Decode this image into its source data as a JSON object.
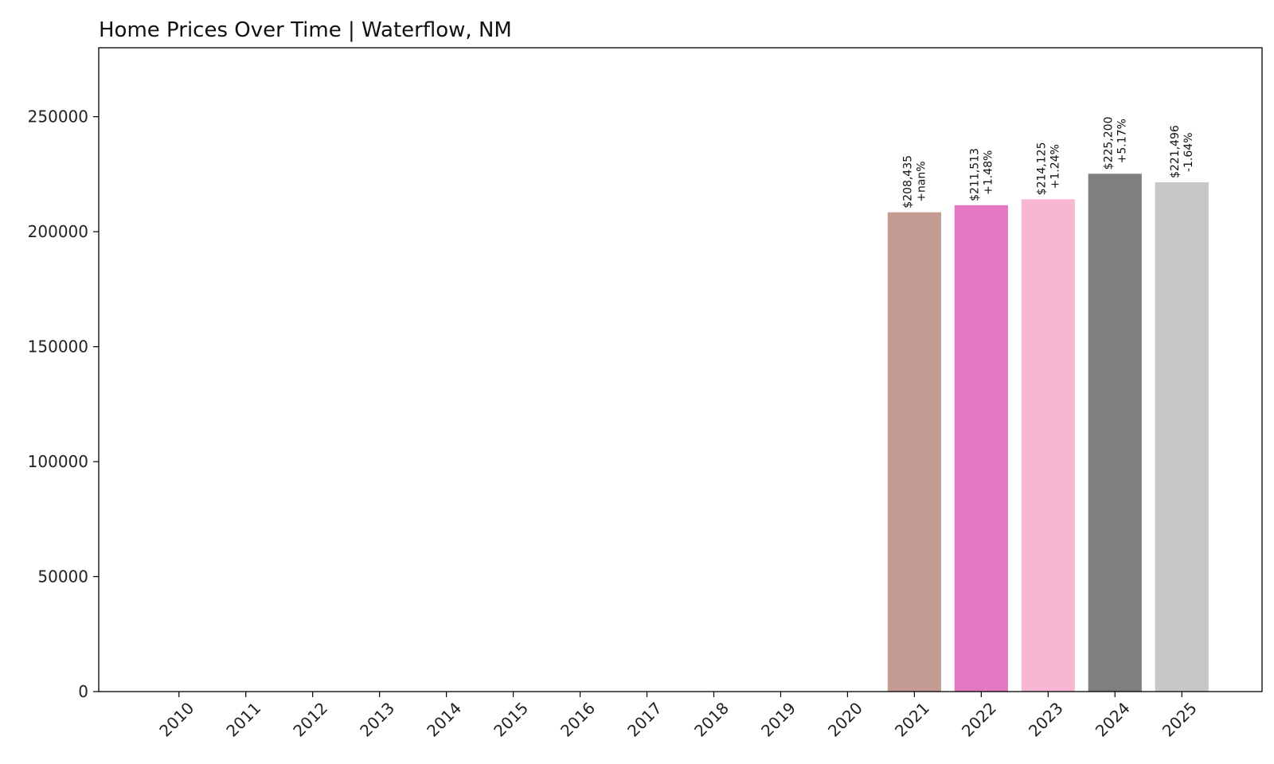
{
  "chart_data": {
    "type": "bar",
    "title": "Home Prices Over Time | Waterflow, NM",
    "xlabel": "",
    "ylabel": "",
    "categories": [
      "2010",
      "2011",
      "2012",
      "2013",
      "2014",
      "2015",
      "2016",
      "2017",
      "2018",
      "2019",
      "2020",
      "2021",
      "2022",
      "2023",
      "2024",
      "2025"
    ],
    "values": [
      0,
      0,
      0,
      0,
      0,
      0,
      0,
      0,
      0,
      0,
      0,
      208435,
      211513,
      214125,
      225200,
      221496
    ],
    "value_labels": [
      "",
      "",
      "",
      "",
      "",
      "",
      "",
      "",
      "",
      "",
      "",
      "$208,435",
      "$211,513",
      "$214,125",
      "$225,200",
      "$221,496"
    ],
    "change_labels": [
      "",
      "",
      "",
      "",
      "",
      "",
      "",
      "",
      "",
      "",
      "",
      "+nan%",
      "+1.48%",
      "+1.24%",
      "+5.17%",
      "-1.64%"
    ],
    "colors": [
      "#1f77b4",
      "#ff7f0e",
      "#2ca02c",
      "#d62728",
      "#9467bd",
      "#8c564b",
      "#e377c2",
      "#7f7f7f",
      "#bcbd22",
      "#17becf",
      "#1f77b4",
      "#c49c94",
      "#e377c2",
      "#f7b6d2",
      "#7f7f7f",
      "#c7c7c7"
    ],
    "ylim": [
      0,
      280000
    ],
    "yticks": [
      0,
      50000,
      100000,
      150000,
      200000,
      250000
    ],
    "ytick_labels": [
      "0",
      "50000",
      "100000",
      "150000",
      "200000",
      "250000"
    ],
    "grid": false,
    "legend": "none"
  }
}
